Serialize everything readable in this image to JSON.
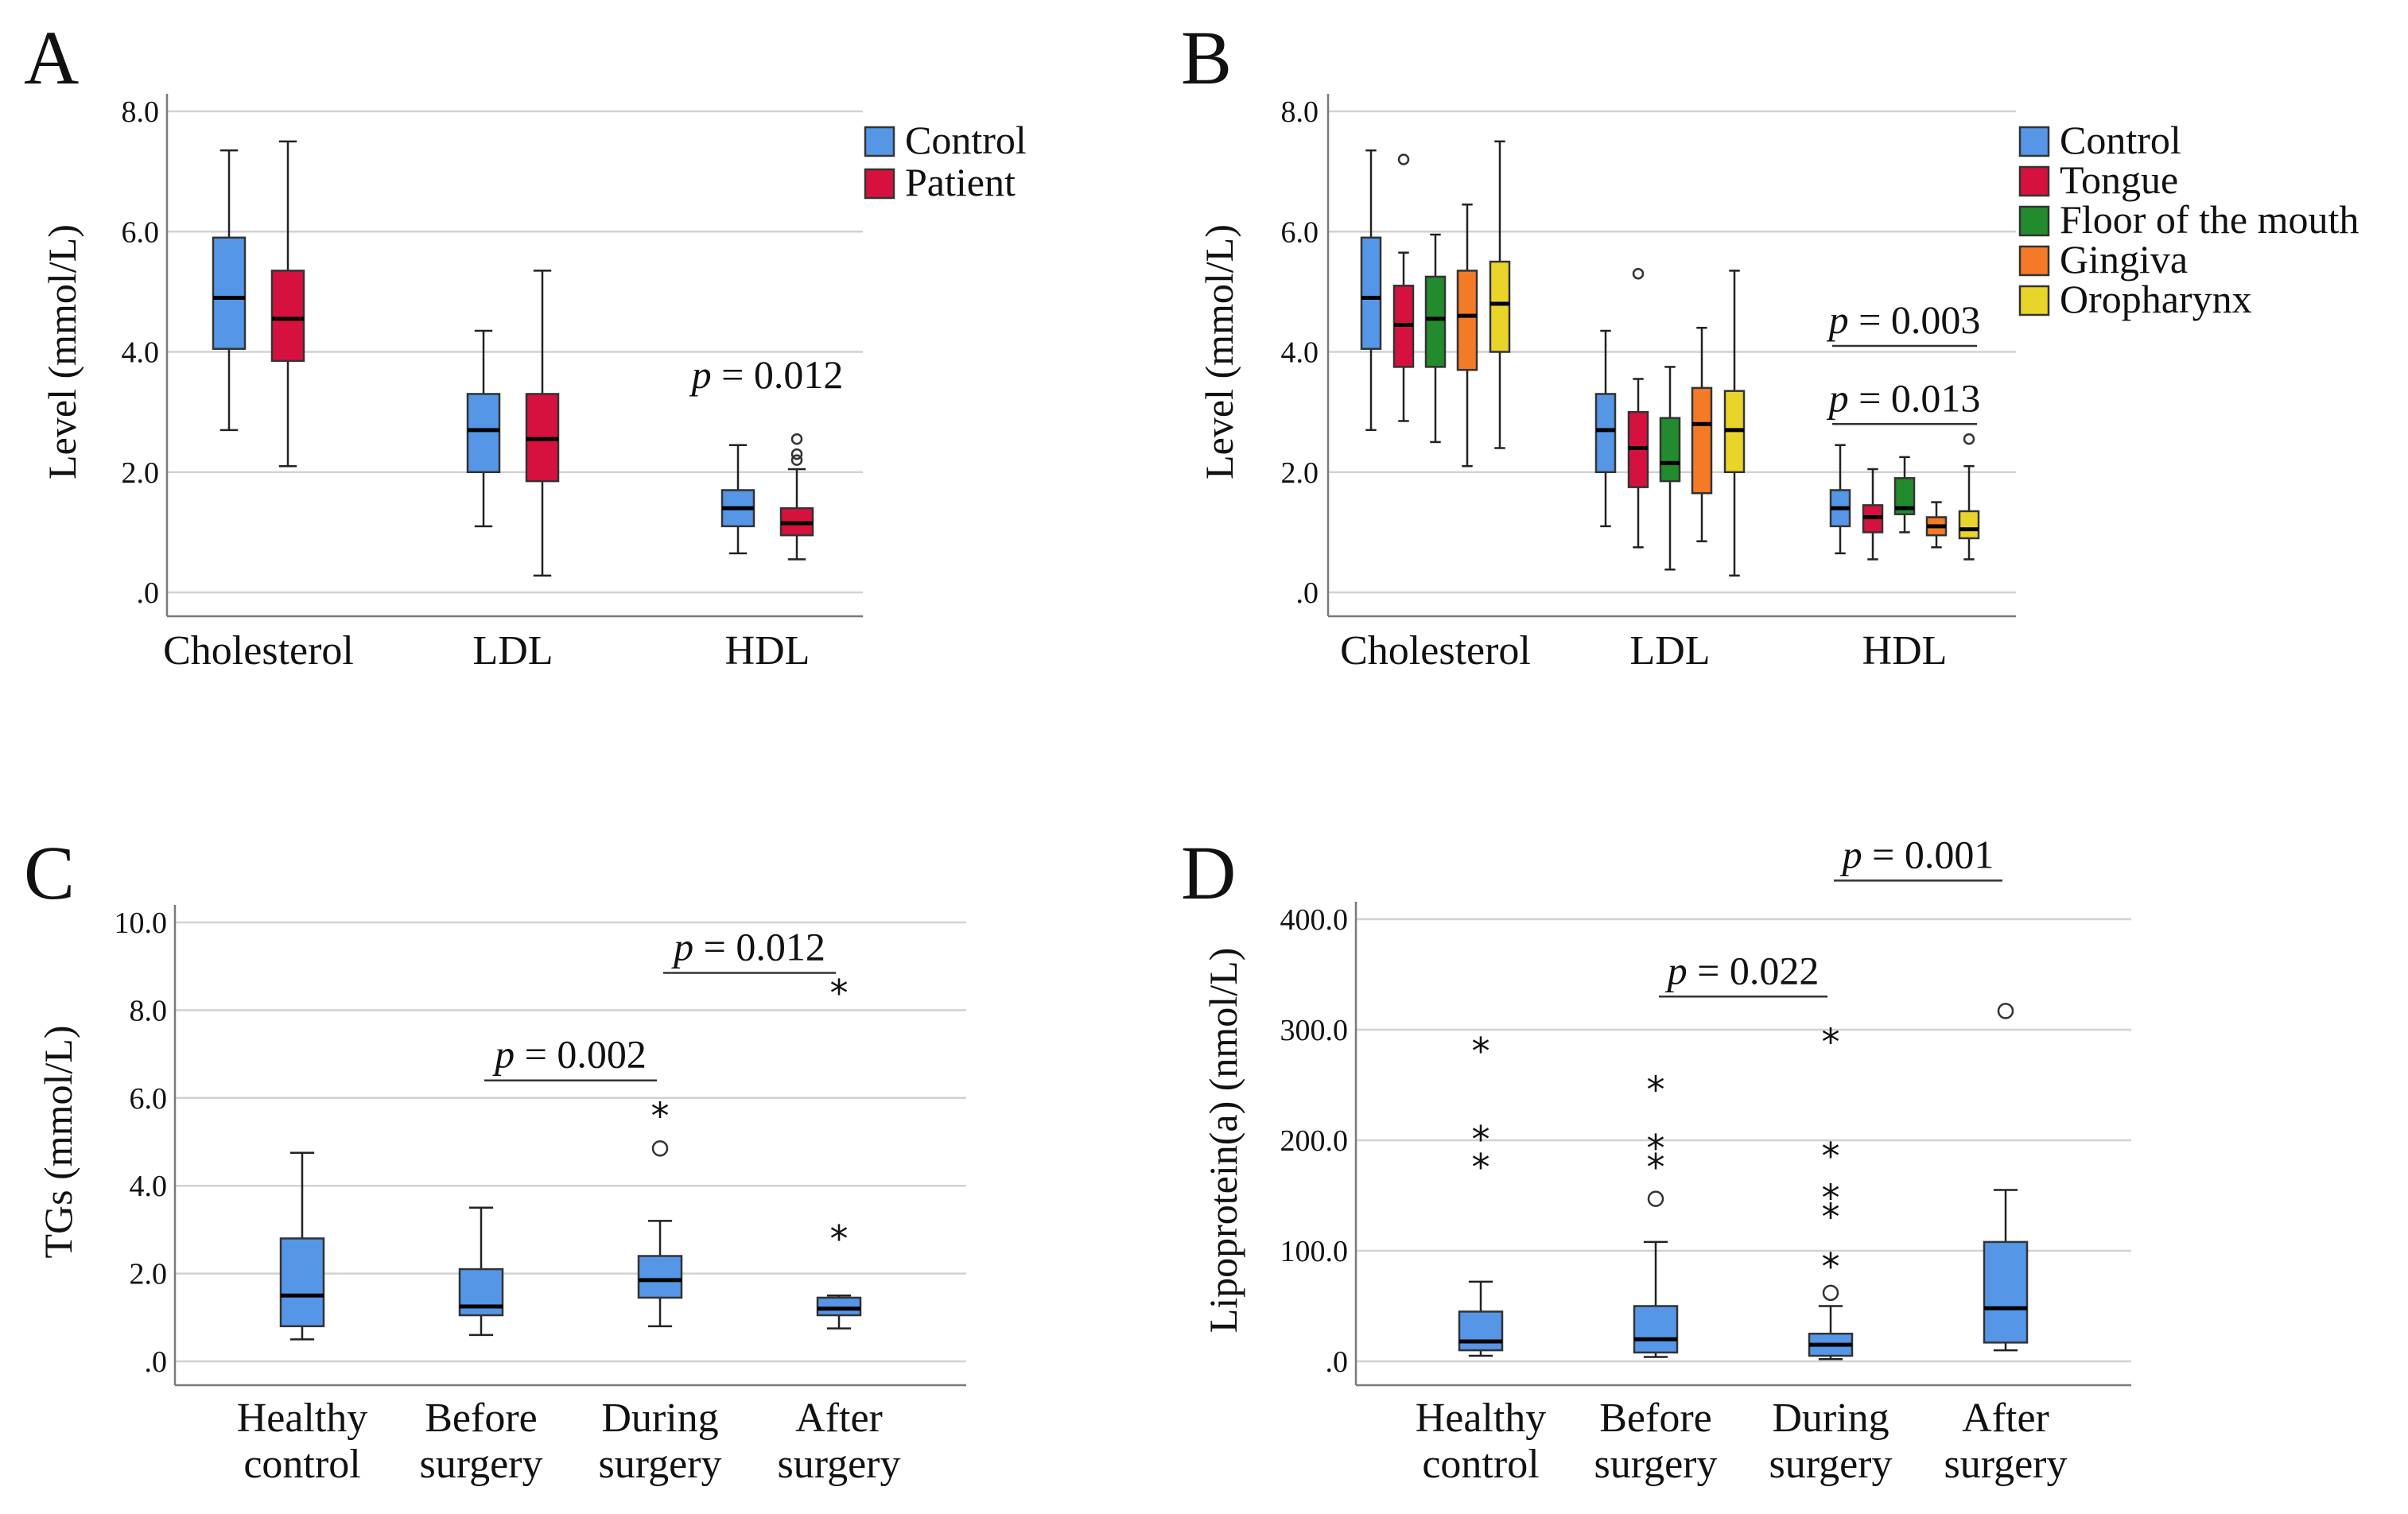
{
  "colors": {
    "control": "#5596e6",
    "patient": "#d6113d",
    "tongue": "#d6113d",
    "floor": "#228b2d",
    "gingiva": "#f47a28",
    "oropharynx": "#e9d52a"
  },
  "chart_data": [
    {
      "panel": "A",
      "type": "boxplot",
      "ylabel": "Level (mmol/L)",
      "ylim": [
        0,
        8
      ],
      "yticks": [
        0,
        2,
        4,
        6,
        8
      ],
      "ytick_labels": [
        ".0",
        "2.0",
        "4.0",
        "6.0",
        "8.0"
      ],
      "categories": [
        "Cholesterol",
        "LDL",
        "HDL"
      ],
      "legend": {
        "position": "top-right",
        "entries": [
          "Control",
          "Patient"
        ]
      },
      "series": [
        {
          "name": "Control",
          "color": "control",
          "boxes": [
            {
              "category": "Cholesterol",
              "min": 2.7,
              "q1": 4.05,
              "median": 4.9,
              "q3": 5.9,
              "max": 7.35,
              "outliers": []
            },
            {
              "category": "LDL",
              "min": 1.1,
              "q1": 2.0,
              "median": 2.7,
              "q3": 3.3,
              "max": 4.35,
              "outliers": []
            },
            {
              "category": "HDL",
              "min": 0.65,
              "q1": 1.1,
              "median": 1.4,
              "q3": 1.7,
              "max": 2.45,
              "outliers": []
            }
          ]
        },
        {
          "name": "Patient",
          "color": "patient",
          "boxes": [
            {
              "category": "Cholesterol",
              "min": 2.1,
              "q1": 3.85,
              "median": 4.55,
              "q3": 5.35,
              "max": 7.5,
              "outliers": []
            },
            {
              "category": "LDL",
              "min": 0.28,
              "q1": 1.85,
              "median": 2.55,
              "q3": 3.3,
              "max": 5.35,
              "outliers": []
            },
            {
              "category": "HDL",
              "min": 0.55,
              "q1": 0.95,
              "median": 1.15,
              "q3": 1.4,
              "max": 2.05,
              "outliers": [
                2.2,
                2.3,
                2.55
              ]
            }
          ]
        }
      ],
      "annotations": [
        {
          "label": "p",
          "text": " = 0.012",
          "x_category": "HDL",
          "y": 3.4
        }
      ]
    },
    {
      "panel": "B",
      "type": "boxplot",
      "ylabel": "Level (mmol/L)",
      "ylim": [
        0,
        8
      ],
      "yticks": [
        0,
        2,
        4,
        6,
        8
      ],
      "ytick_labels": [
        ".0",
        "2.0",
        "4.0",
        "6.0",
        "8.0"
      ],
      "categories": [
        "Cholesterol",
        "LDL",
        "HDL"
      ],
      "legend": {
        "position": "top-right",
        "entries": [
          "Control",
          "Tongue",
          "Floor of the mouth",
          "Gingiva",
          "Oropharynx"
        ]
      },
      "series": [
        {
          "name": "Control",
          "color": "control",
          "boxes": [
            {
              "category": "Cholesterol",
              "min": 2.7,
              "q1": 4.05,
              "median": 4.9,
              "q3": 5.9,
              "max": 7.35,
              "outliers": []
            },
            {
              "category": "LDL",
              "min": 1.1,
              "q1": 2.0,
              "median": 2.7,
              "q3": 3.3,
              "max": 4.35,
              "outliers": []
            },
            {
              "category": "HDL",
              "min": 0.65,
              "q1": 1.1,
              "median": 1.4,
              "q3": 1.7,
              "max": 2.45,
              "outliers": []
            }
          ]
        },
        {
          "name": "Tongue",
          "color": "tongue",
          "boxes": [
            {
              "category": "Cholesterol",
              "min": 2.85,
              "q1": 3.75,
              "median": 4.45,
              "q3": 5.1,
              "max": 5.65,
              "outliers": [
                7.2
              ]
            },
            {
              "category": "LDL",
              "min": 0.75,
              "q1": 1.75,
              "median": 2.4,
              "q3": 3.0,
              "max": 3.55,
              "outliers": [
                5.3
              ]
            },
            {
              "category": "HDL",
              "min": 0.55,
              "q1": 1.0,
              "median": 1.25,
              "q3": 1.45,
              "max": 2.05,
              "outliers": []
            }
          ]
        },
        {
          "name": "Floor of the mouth",
          "color": "floor",
          "boxes": [
            {
              "category": "Cholesterol",
              "min": 2.5,
              "q1": 3.75,
              "median": 4.55,
              "q3": 5.25,
              "max": 5.95,
              "outliers": []
            },
            {
              "category": "LDL",
              "min": 0.38,
              "q1": 1.85,
              "median": 2.15,
              "q3": 2.9,
              "max": 3.75,
              "outliers": []
            },
            {
              "category": "HDL",
              "min": 1.0,
              "q1": 1.3,
              "median": 1.4,
              "q3": 1.9,
              "max": 2.25,
              "outliers": []
            }
          ]
        },
        {
          "name": "Gingiva",
          "color": "gingiva",
          "boxes": [
            {
              "category": "Cholesterol",
              "min": 2.1,
              "q1": 3.7,
              "median": 4.6,
              "q3": 5.35,
              "max": 6.45,
              "outliers": []
            },
            {
              "category": "LDL",
              "min": 0.85,
              "q1": 1.65,
              "median": 2.8,
              "q3": 3.4,
              "max": 4.4,
              "outliers": []
            },
            {
              "category": "HDL",
              "min": 0.75,
              "q1": 0.95,
              "median": 1.1,
              "q3": 1.25,
              "max": 1.5,
              "outliers": []
            }
          ]
        },
        {
          "name": "Oropharynx",
          "color": "oropharynx",
          "boxes": [
            {
              "category": "Cholesterol",
              "min": 2.4,
              "q1": 4.0,
              "median": 4.8,
              "q3": 5.5,
              "max": 7.5,
              "outliers": []
            },
            {
              "category": "LDL",
              "min": 0.28,
              "q1": 2.0,
              "median": 2.7,
              "q3": 3.35,
              "max": 5.35,
              "outliers": []
            },
            {
              "category": "HDL",
              "min": 0.55,
              "q1": 0.9,
              "median": 1.05,
              "q3": 1.35,
              "max": 2.1,
              "outliers": [
                2.55
              ]
            }
          ]
        }
      ],
      "brackets": [
        {
          "label": "p",
          "text": " = 0.003",
          "from_series": 0,
          "to_series": 4,
          "category": "HDL",
          "y": 4.1
        },
        {
          "label": "p",
          "text": " = 0.013",
          "from_series": 0,
          "to_series": 4,
          "category": "HDL",
          "y": 2.8
        }
      ]
    },
    {
      "panel": "C",
      "type": "boxplot",
      "ylabel": "TGs (mmol/L)",
      "ylim": [
        0,
        10
      ],
      "yticks": [
        0,
        2,
        4,
        6,
        8,
        10
      ],
      "ytick_labels": [
        ".0",
        "2.0",
        "4.0",
        "6.0",
        "8.0",
        "10.0"
      ],
      "categories": [
        "Healthy|control",
        "Before|surgery",
        "During|surgery",
        "After|surgery"
      ],
      "series": [
        {
          "name": "TGs",
          "color": "control",
          "boxes": [
            {
              "category": "Healthy control",
              "min": 0.5,
              "q1": 0.8,
              "median": 1.5,
              "q3": 2.8,
              "max": 4.75,
              "outliers": []
            },
            {
              "category": "Before surgery",
              "min": 0.6,
              "q1": 1.05,
              "median": 1.25,
              "q3": 2.1,
              "max": 3.5,
              "outliers": []
            },
            {
              "category": "During surgery",
              "min": 0.8,
              "q1": 1.45,
              "median": 1.85,
              "q3": 2.4,
              "max": 3.2,
              "outliers": [
                4.85
              ],
              "extremes": [
                5.7
              ]
            },
            {
              "category": "After surgery",
              "min": 0.75,
              "q1": 1.05,
              "median": 1.2,
              "q3": 1.45,
              "max": 1.5,
              "outliers": [],
              "extremes": [
                2.9,
                8.5
              ]
            }
          ]
        }
      ],
      "brackets": [
        {
          "label": "p",
          "text": " = 0.002",
          "from": 1,
          "to": 2,
          "y": 6.4
        },
        {
          "label": "p",
          "text": " = 0.012",
          "from": 2,
          "to": 3,
          "y": 8.85
        }
      ]
    },
    {
      "panel": "D",
      "type": "boxplot",
      "ylabel": "Lipoprotein(a) (nmol/L)",
      "ylim": [
        0,
        400
      ],
      "yticks": [
        0,
        100,
        200,
        300,
        400
      ],
      "ytick_labels": [
        ".0",
        "100.0",
        "200.0",
        "300.0",
        "400.0"
      ],
      "categories": [
        "Healthy|control",
        "Before|surgery",
        "During|surgery",
        "After|surgery"
      ],
      "series": [
        {
          "name": "Lipoprotein(a)",
          "color": "control",
          "boxes": [
            {
              "category": "Healthy control",
              "min": 5,
              "q1": 10,
              "median": 18,
              "q3": 45,
              "max": 72,
              "outliers": [],
              "extremes": [
                180,
                205,
                285
              ]
            },
            {
              "category": "Before surgery",
              "min": 4,
              "q1": 8,
              "median": 20,
              "q3": 50,
              "max": 108,
              "outliers": [
                147
              ],
              "extremes": [
                180,
                197,
                250
              ]
            },
            {
              "category": "During surgery",
              "min": 2,
              "q1": 5,
              "median": 15,
              "q3": 25,
              "max": 50,
              "outliers": [
                62
              ],
              "extremes": [
                90,
                135,
                152,
                190,
                293
              ]
            },
            {
              "category": "After surgery",
              "min": 10,
              "q1": 17,
              "median": 48,
              "q3": 108,
              "max": 155,
              "outliers": [
                317
              ],
              "extremes": []
            }
          ]
        }
      ],
      "brackets": [
        {
          "label": "p",
          "text": " = 0.022",
          "from": 1,
          "to": 2,
          "y": 330
        },
        {
          "label": "p",
          "text": " = 0.001",
          "from": 2,
          "to": 3,
          "y": 435
        }
      ]
    }
  ]
}
